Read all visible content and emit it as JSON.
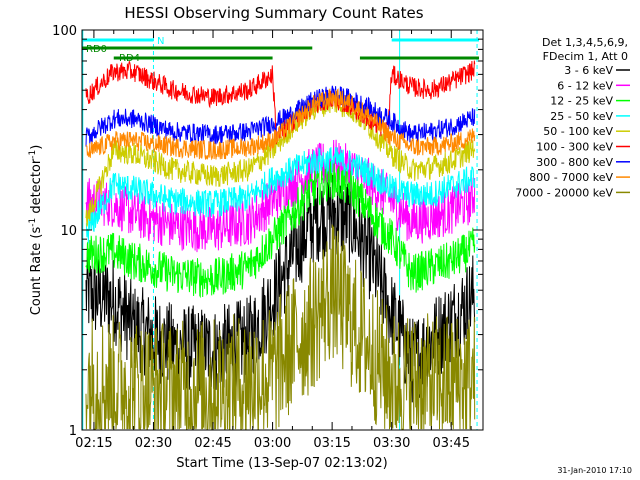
{
  "chart_data": {
    "type": "line",
    "title": "HESSI Observing Summary Count Rates",
    "xlabel": "Start Time (13-Sep-07 02:13:02)",
    "ylabel_main": "Count Rate (s",
    "ylabel_sup1": "-1",
    "ylabel_mid": " detector",
    "ylabel_sup2": "-1",
    "ylabel_end": ")",
    "yscale": "log",
    "ylim": [
      1,
      100
    ],
    "xlim_minutes": [
      132,
      233
    ],
    "x_ticks": [
      {
        "label": "02:15",
        "minutes": 135
      },
      {
        "label": "02:30",
        "minutes": 150
      },
      {
        "label": "02:45",
        "minutes": 165
      },
      {
        "label": "03:00",
        "minutes": 180
      },
      {
        "label": "03:15",
        "minutes": 195
      },
      {
        "label": "03:30",
        "minutes": 210
      },
      {
        "label": "03:45",
        "minutes": 225
      }
    ],
    "y_ticks": [
      {
        "label": "1",
        "value": 1
      },
      {
        "label": "10",
        "value": 10
      },
      {
        "label": "100",
        "value": 100
      }
    ],
    "legend_header": [
      "Det 1,3,4,5,6,9,",
      "FDecim 1, Att 0"
    ],
    "legend_position": "right",
    "series": [
      {
        "name": "3 - 6 keV",
        "color": "#000000",
        "points": [
          [
            133,
            4.8
          ],
          [
            140,
            4.5
          ],
          [
            145,
            3.3
          ],
          [
            155,
            2.6
          ],
          [
            165,
            2.5
          ],
          [
            174,
            2.8
          ],
          [
            180,
            4.5
          ],
          [
            185,
            7.5
          ],
          [
            190,
            11
          ],
          [
            195,
            12.5
          ],
          [
            200,
            11
          ],
          [
            205,
            7
          ],
          [
            210,
            3.8
          ],
          [
            215,
            2.2
          ],
          [
            220,
            2.8
          ],
          [
            225,
            3.5
          ],
          [
            230,
            4.5
          ],
          [
            231,
            5.0
          ]
        ]
      },
      {
        "name": "6 - 12 keV",
        "color": "#ff00ff",
        "points": [
          [
            133,
            14
          ],
          [
            140,
            13.5
          ],
          [
            145,
            12
          ],
          [
            155,
            10.5
          ],
          [
            165,
            10
          ],
          [
            174,
            11
          ],
          [
            180,
            14
          ],
          [
            185,
            17
          ],
          [
            190,
            20
          ],
          [
            195,
            22
          ],
          [
            200,
            20
          ],
          [
            205,
            17
          ],
          [
            210,
            14
          ],
          [
            215,
            11
          ],
          [
            220,
            11.5
          ],
          [
            225,
            12.5
          ],
          [
            230,
            14
          ],
          [
            231,
            16
          ]
        ]
      },
      {
        "name": "12 - 25 keV",
        "color": "#00ff00",
        "points": [
          [
            133,
            7.5
          ],
          [
            140,
            7.8
          ],
          [
            145,
            7
          ],
          [
            155,
            6
          ],
          [
            165,
            5.7
          ],
          [
            174,
            6.5
          ],
          [
            180,
            9
          ],
          [
            185,
            12
          ],
          [
            190,
            16
          ],
          [
            195,
            18
          ],
          [
            200,
            16
          ],
          [
            205,
            12
          ],
          [
            210,
            9
          ],
          [
            215,
            6
          ],
          [
            220,
            6.5
          ],
          [
            225,
            7
          ],
          [
            230,
            8
          ],
          [
            231,
            8.5
          ]
        ]
      },
      {
        "name": "25 - 50 keV",
        "color": "#00ffff",
        "points": [
          [
            133,
            9.5
          ],
          [
            140,
            17
          ],
          [
            145,
            16
          ],
          [
            155,
            14
          ],
          [
            165,
            13.5
          ],
          [
            174,
            14.5
          ],
          [
            180,
            18
          ],
          [
            185,
            20
          ],
          [
            190,
            22
          ],
          [
            195,
            22.5
          ],
          [
            200,
            21.5
          ],
          [
            205,
            19
          ],
          [
            210,
            16
          ],
          [
            215,
            15
          ],
          [
            220,
            15
          ],
          [
            225,
            16.5
          ],
          [
            230,
            18
          ],
          [
            231,
            19
          ]
        ]
      },
      {
        "name": "50 - 100 keV",
        "color": "#cccc00",
        "points": [
          [
            133,
            11
          ],
          [
            140,
            25
          ],
          [
            145,
            24
          ],
          [
            155,
            20
          ],
          [
            165,
            18.5
          ],
          [
            174,
            20
          ],
          [
            180,
            25
          ],
          [
            185,
            33
          ],
          [
            190,
            40
          ],
          [
            195,
            44
          ],
          [
            200,
            40
          ],
          [
            205,
            32
          ],
          [
            210,
            24
          ],
          [
            215,
            20
          ],
          [
            220,
            20.5
          ],
          [
            225,
            22
          ],
          [
            230,
            25
          ],
          [
            231,
            27
          ]
        ]
      },
      {
        "name": "100 - 300 keV",
        "color": "#ff0000",
        "points": [
          [
            133,
            46
          ],
          [
            140,
            62
          ],
          [
            145,
            62
          ],
          [
            155,
            50
          ],
          [
            165,
            46
          ],
          [
            174,
            50
          ],
          [
            180,
            60
          ],
          [
            181,
            29
          ],
          [
            185,
            35
          ],
          [
            190,
            42
          ],
          [
            195,
            45
          ],
          [
            200,
            42
          ],
          [
            205,
            35
          ],
          [
            209,
            31
          ],
          [
            210,
            60
          ],
          [
            215,
            52
          ],
          [
            220,
            50
          ],
          [
            225,
            55
          ],
          [
            230,
            62
          ],
          [
            231,
            64
          ]
        ]
      },
      {
        "name": "300 - 800 keV",
        "color": "#0000ff",
        "points": [
          [
            133,
            29
          ],
          [
            140,
            36
          ],
          [
            145,
            36
          ],
          [
            155,
            31
          ],
          [
            165,
            30
          ],
          [
            174,
            31
          ],
          [
            180,
            34
          ],
          [
            185,
            38
          ],
          [
            190,
            44
          ],
          [
            195,
            48
          ],
          [
            200,
            45
          ],
          [
            205,
            40
          ],
          [
            210,
            35
          ],
          [
            215,
            30
          ],
          [
            220,
            31
          ],
          [
            225,
            33
          ],
          [
            230,
            36
          ],
          [
            231,
            37
          ]
        ]
      },
      {
        "name": "800 - 7000 keV",
        "color": "#ff8800",
        "points": [
          [
            133,
            24
          ],
          [
            140,
            28
          ],
          [
            145,
            28
          ],
          [
            155,
            26
          ],
          [
            165,
            25
          ],
          [
            174,
            26
          ],
          [
            180,
            28
          ],
          [
            185,
            34
          ],
          [
            190,
            42
          ],
          [
            195,
            46
          ],
          [
            200,
            43
          ],
          [
            205,
            36
          ],
          [
            210,
            29
          ],
          [
            215,
            26
          ],
          [
            220,
            26
          ],
          [
            225,
            27
          ],
          [
            230,
            29
          ],
          [
            231,
            30
          ]
        ]
      },
      {
        "name": "7000 - 20000 keV",
        "color": "#888800",
        "points": [
          [
            133,
            1.8
          ],
          [
            140,
            1.7
          ],
          [
            150,
            1.6
          ],
          [
            160,
            1.6
          ],
          [
            170,
            1.7
          ],
          [
            180,
            1.9
          ],
          [
            185,
            2.7
          ],
          [
            190,
            3.4
          ],
          [
            195,
            5.0
          ],
          [
            200,
            3.5
          ],
          [
            205,
            2.5
          ],
          [
            210,
            1.8
          ],
          [
            220,
            1.7
          ],
          [
            230,
            1.8
          ],
          [
            231,
            1.8
          ]
        ]
      }
    ],
    "state_bars": [
      {
        "label": "N",
        "color": "#00ffff",
        "segments": [
          [
            132,
            150
          ],
          [
            210,
            232
          ]
        ]
      },
      {
        "label": "RD0",
        "color": "#008800",
        "segments": [
          [
            132,
            190
          ]
        ]
      },
      {
        "label": "RD4",
        "color": "#008800",
        "segments": [
          [
            140,
            180
          ],
          [
            202,
            232
          ]
        ]
      }
    ],
    "vlines": [
      {
        "minutes": 132.2,
        "color": "#00ffff",
        "style": "solid"
      },
      {
        "minutes": 150,
        "color": "#00ffff",
        "style": "dashed"
      },
      {
        "minutes": 212,
        "color": "#00ffff",
        "style": "solid"
      },
      {
        "minutes": 231.5,
        "color": "#00ffff",
        "style": "dashed"
      }
    ]
  },
  "footer": {
    "date_stamp": "31-Jan-2010 17:10"
  }
}
